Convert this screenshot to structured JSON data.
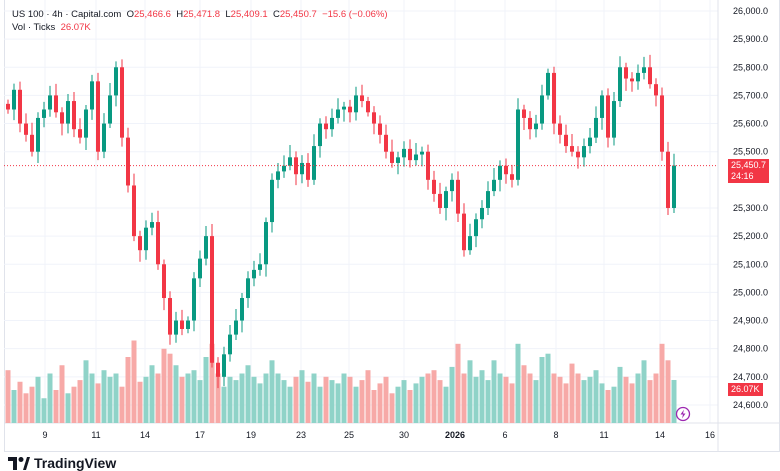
{
  "header": {
    "symbol": "US 100 · 4h · Capital.com",
    "o_label": "O",
    "o": "25,466.6",
    "h_label": "H",
    "h": "25,471.8",
    "l_label": "L",
    "l": "25,409.1",
    "c_label": "C",
    "c": "25,450.7",
    "change": "−15.6 (−0.06%)",
    "vol_label": "Vol · Ticks",
    "vol": "26.07K"
  },
  "price_tag": {
    "price": "25,450.7",
    "countdown": "24:16"
  },
  "vol_tag": "26.07K",
  "brand": "TradingView",
  "colors": {
    "up": "#089981",
    "down": "#f23645",
    "up_vol": "#8fd3c8",
    "down_vol": "#f7a9a7"
  },
  "chart_data": {
    "type": "candlestick",
    "title": "US 100 · 4h · Capital.com",
    "ylim": [
      24550,
      26000
    ],
    "y_ticks": [
      26000,
      25900,
      25800,
      25700,
      25600,
      25500,
      25300,
      25200,
      25100,
      25000,
      24900,
      24800,
      24700,
      24600
    ],
    "y_tick_labels": [
      "26,000.0",
      "25,900.0",
      "25,800.0",
      "25,700.0",
      "25,600.0",
      "25,500.0",
      "25,300.0",
      "25,200.0",
      "25,100.0",
      "25,000.0",
      "24,900.0",
      "24,800.0",
      "24,700.0",
      "24,600.0"
    ],
    "x_tick_labels": [
      "9",
      "11",
      "14",
      "17",
      "19",
      "23",
      "25",
      "30",
      "2026",
      "6",
      "8",
      "11",
      "14",
      "16"
    ],
    "close": [
      25650,
      25720,
      25600,
      25560,
      25500,
      25620,
      25650,
      25700,
      25640,
      25600,
      25680,
      25580,
      25550,
      25650,
      25750,
      25500,
      25600,
      25700,
      25800,
      25550,
      25380,
      25200,
      25150,
      25230,
      25250,
      25100,
      24980,
      24850,
      24900,
      24870,
      24900,
      25050,
      25120,
      25200,
      24750,
      24700,
      24780,
      24850,
      24900,
      24980,
      25050,
      25080,
      25100,
      25250,
      25400,
      25430,
      25450,
      25480,
      25420,
      25460,
      25400,
      25520,
      25600,
      25580,
      25620,
      25650,
      25660,
      25640,
      25700,
      25680,
      25640,
      25600,
      25560,
      25500,
      25460,
      25480,
      25510,
      25470,
      25490,
      25500,
      25400,
      25350,
      25300,
      25360,
      25400,
      25280,
      25150,
      25200,
      25260,
      25300,
      25360,
      25400,
      25450,
      25420,
      25400,
      25650,
      25620,
      25580,
      25600,
      25700,
      25780,
      25600,
      25560,
      25520,
      25500,
      25480,
      25520,
      25550,
      25620,
      25700,
      25550,
      25680,
      25800,
      25760,
      25750,
      25780,
      25800,
      25740,
      25700,
      25500,
      25300,
      25450.7
    ],
    "volume_k": [
      32,
      20,
      25,
      18,
      22,
      28,
      15,
      30,
      20,
      35,
      18,
      22,
      26,
      38,
      30,
      24,
      32,
      28,
      30,
      22,
      40,
      50,
      25,
      28,
      35,
      30,
      45,
      42,
      35,
      28,
      30,
      32,
      26,
      40,
      48,
      30,
      22,
      28,
      26,
      30,
      35,
      28,
      24,
      30,
      38,
      30,
      26,
      22,
      28,
      32,
      25,
      30,
      22,
      28,
      26,
      24,
      30,
      28,
      22,
      26,
      32,
      20,
      24,
      28,
      18,
      22,
      26,
      20,
      24,
      28,
      30,
      32,
      26,
      22,
      34,
      48,
      30,
      38,
      28,
      32,
      26,
      38,
      30,
      28,
      24,
      48,
      35,
      30,
      26,
      40,
      42,
      30,
      28,
      24,
      36,
      30,
      26,
      28,
      32,
      24,
      20,
      22,
      34,
      28,
      24,
      30,
      38,
      26,
      30,
      48,
      38,
      26.07
    ],
    "last_price": 25450.7
  }
}
